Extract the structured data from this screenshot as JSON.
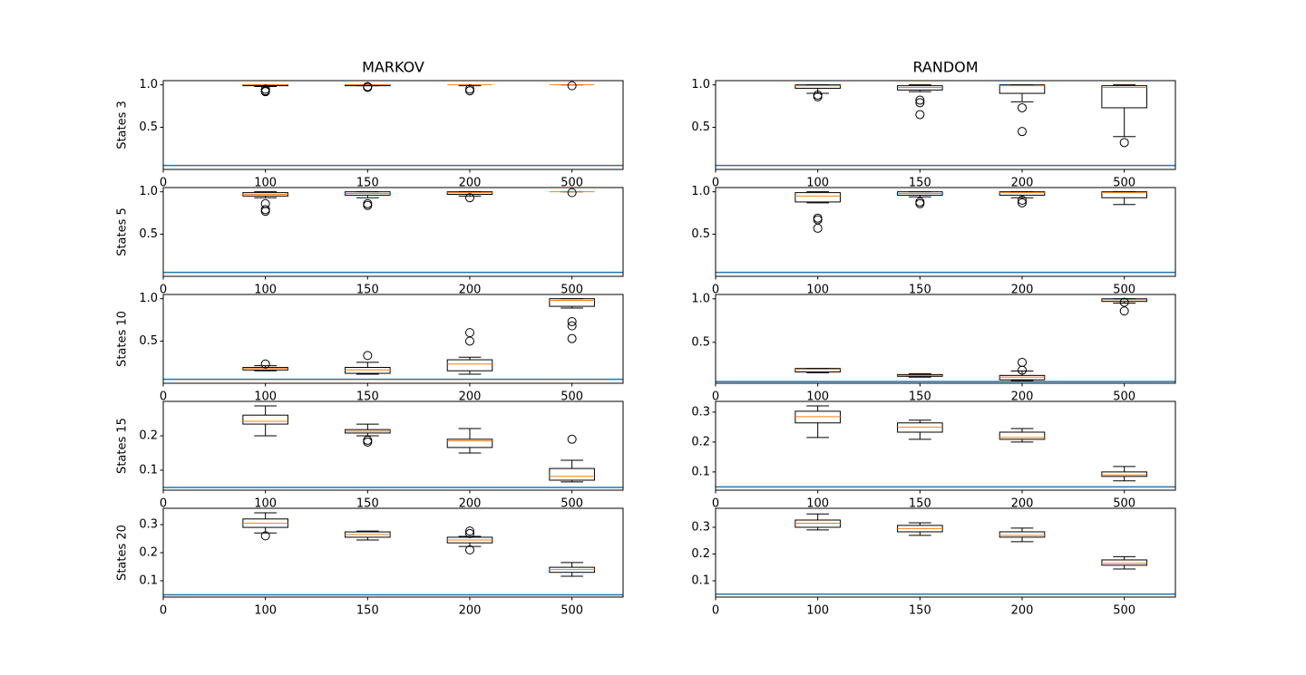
{
  "chart_data": [
    {
      "type": "box",
      "title": "MARKOV",
      "ylabel": "States 3",
      "x": [
        1,
        2,
        3,
        4
      ],
      "xlim": [
        0,
        4.5
      ],
      "xticks": [
        0,
        {
          "value": 1,
          "label": "100"
        },
        {
          "value": 2,
          "label": "150"
        },
        {
          "value": 3,
          "label": "200"
        },
        {
          "value": 4,
          "label": "500"
        }
      ],
      "ylim": [
        0.003,
        1.05
      ],
      "yticks": [
        0.5,
        {
          "value": 1,
          "label": "1.0"
        }
      ],
      "hline": {
        "value": 0.05,
        "color": "#1f77b4"
      },
      "box_color": "#000000",
      "median_color": "#ff7f0e",
      "boxes": [
        {
          "whislo": 0.98,
          "q1": 0.99,
          "med": 1.0,
          "q3": 1.0,
          "whishi": 1.0,
          "fliers": [
            0.95,
            0.93,
            0.92
          ]
        },
        {
          "whislo": 0.99,
          "q1": 0.99,
          "med": 1.0,
          "q3": 1.0,
          "whishi": 1.0,
          "fliers": [
            0.98,
            0.97
          ]
        },
        {
          "whislo": 0.99,
          "q1": 1.0,
          "med": 1.0,
          "q3": 1.0,
          "whishi": 1.0,
          "fliers": [
            0.95,
            0.93
          ]
        },
        {
          "whislo": 1.0,
          "q1": 1.0,
          "med": 1.0,
          "q3": 1.0,
          "whishi": 1.0,
          "fliers": [
            0.99
          ]
        }
      ]
    },
    {
      "type": "box",
      "title": "RANDOM",
      "x": [
        1,
        2,
        3,
        4
      ],
      "xlim": [
        0,
        4.5
      ],
      "xticks": [
        0,
        {
          "value": 1,
          "label": "100"
        },
        {
          "value": 2,
          "label": "150"
        },
        {
          "value": 3,
          "label": "200"
        },
        {
          "value": 4,
          "label": "500"
        }
      ],
      "ylim": [
        0.003,
        1.05
      ],
      "yticks": [
        0.5,
        {
          "value": 1,
          "label": "1.0"
        }
      ],
      "hline": {
        "value": 0.05,
        "color": "#1f77b4"
      },
      "box_color": "#000000",
      "median_color": "#ff7f0e",
      "boxes": [
        {
          "whislo": 0.9,
          "q1": 0.96,
          "med": 0.99,
          "q3": 1.0,
          "whishi": 1.0,
          "fliers": [
            0.88,
            0.86
          ]
        },
        {
          "whislo": 0.92,
          "q1": 0.94,
          "med": 0.97,
          "q3": 0.99,
          "whishi": 1.0,
          "fliers": [
            0.82,
            0.79,
            0.65
          ]
        },
        {
          "whislo": 0.8,
          "q1": 0.9,
          "med": 0.99,
          "q3": 1.0,
          "whishi": 1.0,
          "fliers": [
            0.73,
            0.45
          ]
        },
        {
          "whislo": 0.39,
          "q1": 0.73,
          "med": 0.97,
          "q3": 0.99,
          "whishi": 1.0,
          "fliers": [
            0.32
          ]
        }
      ]
    },
    {
      "type": "box",
      "ylabel": "States 5",
      "x": [
        1,
        2,
        3,
        4
      ],
      "xlim": [
        0,
        4.5
      ],
      "xticks": [
        0,
        {
          "value": 1,
          "label": "100"
        },
        {
          "value": 2,
          "label": "150"
        },
        {
          "value": 3,
          "label": "200"
        },
        {
          "value": 4,
          "label": "500"
        }
      ],
      "ylim": [
        0.003,
        1.05
      ],
      "yticks": [
        0.5,
        {
          "value": 1,
          "label": "1.0"
        }
      ],
      "hline": {
        "value": 0.05,
        "color": "#1f77b4"
      },
      "box_color": "#000000",
      "median_color": "#ff7f0e",
      "boxes": [
        {
          "whislo": 0.93,
          "q1": 0.95,
          "med": 0.97,
          "q3": 0.99,
          "whishi": 1.0,
          "fliers": [
            0.86,
            0.79,
            0.77
          ]
        },
        {
          "whislo": 0.93,
          "q1": 0.96,
          "med": 0.98,
          "q3": 1.0,
          "whishi": 1.0,
          "fliers": [
            0.86,
            0.84
          ]
        },
        {
          "whislo": 0.95,
          "q1": 0.97,
          "med": 0.99,
          "q3": 1.0,
          "whishi": 1.0,
          "fliers": [
            0.93
          ]
        },
        {
          "whislo": 1.0,
          "q1": 1.0,
          "med": 1.0,
          "q3": 1.0,
          "whishi": 1.0,
          "fliers": [
            0.99
          ]
        }
      ]
    },
    {
      "type": "box",
      "x": [
        1,
        2,
        3,
        4
      ],
      "xlim": [
        0,
        4.5
      ],
      "xticks": [
        0,
        {
          "value": 1,
          "label": "100"
        },
        {
          "value": 2,
          "label": "150"
        },
        {
          "value": 3,
          "label": "200"
        },
        {
          "value": 4,
          "label": "500"
        }
      ],
      "ylim": [
        0.003,
        1.05
      ],
      "yticks": [
        0.5,
        {
          "value": 1,
          "label": "1.0"
        }
      ],
      "hline": {
        "value": 0.05,
        "color": "#1f77b4"
      },
      "box_color": "#000000",
      "median_color": "#ff7f0e",
      "boxes": [
        {
          "whislo": 0.87,
          "q1": 0.88,
          "med": 0.95,
          "q3": 0.99,
          "whishi": 1.0,
          "fliers": [
            0.69,
            0.67,
            0.57
          ]
        },
        {
          "whislo": 0.94,
          "q1": 0.96,
          "med": 0.98,
          "q3": 1.0,
          "whishi": 1.0,
          "fliers": [
            0.88,
            0.86
          ]
        },
        {
          "whislo": 0.93,
          "q1": 0.96,
          "med": 0.99,
          "q3": 1.0,
          "whishi": 1.0,
          "fliers": [
            0.9,
            0.87
          ]
        },
        {
          "whislo": 0.85,
          "q1": 0.93,
          "med": 0.99,
          "q3": 1.0,
          "whishi": 1.0,
          "fliers": []
        }
      ]
    },
    {
      "type": "box",
      "ylabel": "States 10",
      "x": [
        1,
        2,
        3,
        4
      ],
      "xlim": [
        0,
        4.5
      ],
      "xticks": [
        0,
        {
          "value": 1,
          "label": "100"
        },
        {
          "value": 2,
          "label": "150"
        },
        {
          "value": 3,
          "label": "200"
        },
        {
          "value": 4,
          "label": "500"
        }
      ],
      "ylim": [
        0.003,
        1.05
      ],
      "yticks": [
        0.5,
        {
          "value": 1,
          "label": "1.0"
        }
      ],
      "hline": {
        "value": 0.05,
        "color": "#1f77b4"
      },
      "box_color": "#000000",
      "median_color": "#ff7f0e",
      "boxes": [
        {
          "whislo": 0.15,
          "q1": 0.16,
          "med": 0.18,
          "q3": 0.19,
          "whishi": 0.21,
          "fliers": [
            0.23
          ]
        },
        {
          "whislo": 0.11,
          "q1": 0.12,
          "med": 0.16,
          "q3": 0.19,
          "whishi": 0.25,
          "fliers": [
            0.33
          ]
        },
        {
          "whislo": 0.11,
          "q1": 0.15,
          "med": 0.23,
          "q3": 0.28,
          "whishi": 0.31,
          "fliers": [
            0.6,
            0.5
          ]
        },
        {
          "whislo": 0.89,
          "q1": 0.91,
          "med": 0.98,
          "q3": 1.0,
          "whishi": 1.0,
          "fliers": [
            0.73,
            0.68,
            0.53
          ]
        }
      ]
    },
    {
      "type": "box",
      "x": [
        1,
        2,
        3,
        4
      ],
      "xlim": [
        0,
        4.5
      ],
      "xticks": [
        0,
        {
          "value": 1,
          "label": "100"
        },
        {
          "value": 2,
          "label": "150"
        },
        {
          "value": 3,
          "label": "200"
        },
        {
          "value": 4,
          "label": "500"
        }
      ],
      "ylim": [
        0.03,
        1.05
      ],
      "yticks": [
        0.5,
        {
          "value": 1,
          "label": "1.0"
        }
      ],
      "hline": {
        "value": 0.05,
        "color": "#1f77b4"
      },
      "box_color": "#000000",
      "median_color": "#ff7f0e",
      "boxes": [
        {
          "whislo": 0.15,
          "q1": 0.16,
          "med": 0.19,
          "q3": 0.2,
          "whishi": 0.2,
          "fliers": []
        },
        {
          "whislo": 0.1,
          "q1": 0.11,
          "med": 0.12,
          "q3": 0.13,
          "whishi": 0.14,
          "fliers": []
        },
        {
          "whislo": 0.06,
          "q1": 0.07,
          "med": 0.1,
          "q3": 0.12,
          "whishi": 0.17,
          "fliers": [
            0.27,
            0.18
          ]
        },
        {
          "whislo": 0.95,
          "q1": 0.97,
          "med": 0.99,
          "q3": 1.0,
          "whishi": 1.0,
          "fliers": [
            0.96,
            0.86
          ]
        }
      ]
    },
    {
      "type": "box",
      "ylabel": "States 15",
      "x": [
        1,
        2,
        3,
        4
      ],
      "xlim": [
        0,
        4.5
      ],
      "xticks": [
        0,
        {
          "value": 1,
          "label": "100"
        },
        {
          "value": 2,
          "label": "150"
        },
        {
          "value": 3,
          "label": "200"
        },
        {
          "value": 4,
          "label": "500"
        }
      ],
      "ylim": [
        0.042,
        0.3
      ],
      "yticks": [
        0.1,
        0.2
      ],
      "hline": {
        "value": 0.05,
        "color": "#1f77b4"
      },
      "box_color": "#000000",
      "median_color": "#ff7f0e",
      "boxes": [
        {
          "whislo": 0.2,
          "q1": 0.234,
          "med": 0.242,
          "q3": 0.26,
          "whishi": 0.287,
          "fliers": []
        },
        {
          "whislo": 0.2,
          "q1": 0.208,
          "med": 0.213,
          "q3": 0.218,
          "whishi": 0.234,
          "fliers": [
            0.187,
            0.182
          ]
        },
        {
          "whislo": 0.15,
          "q1": 0.166,
          "med": 0.185,
          "q3": 0.19,
          "whishi": 0.221,
          "fliers": []
        },
        {
          "whislo": 0.066,
          "q1": 0.071,
          "med": 0.082,
          "q3": 0.105,
          "whishi": 0.129,
          "fliers": [
            0.19
          ]
        }
      ]
    },
    {
      "type": "box",
      "x": [
        1,
        2,
        3,
        4
      ],
      "xlim": [
        0,
        4.5
      ],
      "xticks": [
        0,
        {
          "value": 1,
          "label": "100"
        },
        {
          "value": 2,
          "label": "150"
        },
        {
          "value": 3,
          "label": "200"
        },
        {
          "value": 4,
          "label": "500"
        }
      ],
      "ylim": [
        0.039,
        0.336
      ],
      "yticks": [
        0.1,
        0.2,
        0.3
      ],
      "hline": {
        "value": 0.05,
        "color": "#1f77b4"
      },
      "box_color": "#000000",
      "median_color": "#ff7f0e",
      "boxes": [
        {
          "whislo": 0.215,
          "q1": 0.264,
          "med": 0.285,
          "q3": 0.303,
          "whishi": 0.321,
          "fliers": []
        },
        {
          "whislo": 0.209,
          "q1": 0.233,
          "med": 0.25,
          "q3": 0.264,
          "whishi": 0.273,
          "fliers": []
        },
        {
          "whislo": 0.2,
          "q1": 0.209,
          "med": 0.215,
          "q3": 0.233,
          "whishi": 0.245,
          "fliers": []
        },
        {
          "whislo": 0.07,
          "q1": 0.085,
          "med": 0.09,
          "q3": 0.1,
          "whishi": 0.118,
          "fliers": []
        }
      ]
    },
    {
      "type": "box",
      "ylabel": "States 20",
      "x": [
        1,
        2,
        3,
        4
      ],
      "xlim": [
        0,
        4.5
      ],
      "xticks": [
        0,
        {
          "value": 1,
          "label": "100"
        },
        {
          "value": 2,
          "label": "150"
        },
        {
          "value": 3,
          "label": "200"
        },
        {
          "value": 4,
          "label": "500"
        }
      ],
      "ylim": [
        0.042,
        0.358
      ],
      "yticks": [
        0.1,
        0.2,
        0.3
      ],
      "hline": {
        "value": 0.05,
        "color": "#1f77b4"
      },
      "box_color": "#000000",
      "median_color": "#ff7f0e",
      "boxes": [
        {
          "whislo": 0.27,
          "q1": 0.29,
          "med": 0.305,
          "q3": 0.32,
          "whishi": 0.342,
          "fliers": [
            0.26
          ]
        },
        {
          "whislo": 0.245,
          "q1": 0.255,
          "med": 0.265,
          "q3": 0.274,
          "whishi": 0.277,
          "fliers": []
        },
        {
          "whislo": 0.222,
          "q1": 0.235,
          "med": 0.245,
          "q3": 0.255,
          "whishi": 0.258,
          "fliers": [
            0.277,
            0.268,
            0.21
          ]
        },
        {
          "whislo": 0.116,
          "q1": 0.13,
          "med": 0.14,
          "q3": 0.148,
          "whishi": 0.165,
          "fliers": []
        }
      ]
    },
    {
      "type": "box",
      "x": [
        1,
        2,
        3,
        4
      ],
      "xlim": [
        0,
        4.5
      ],
      "xticks": [
        0,
        {
          "value": 1,
          "label": "100"
        },
        {
          "value": 2,
          "label": "150"
        },
        {
          "value": 3,
          "label": "200"
        },
        {
          "value": 4,
          "label": "500"
        }
      ],
      "ylim": [
        0.039,
        0.371
      ],
      "yticks": [
        0.1,
        0.2,
        0.3
      ],
      "hline": {
        "value": 0.05,
        "color": "#1f77b4"
      },
      "box_color": "#000000",
      "median_color": "#ff7f0e",
      "boxes": [
        {
          "whislo": 0.29,
          "q1": 0.3,
          "med": 0.315,
          "q3": 0.327,
          "whishi": 0.35,
          "fliers": []
        },
        {
          "whislo": 0.27,
          "q1": 0.283,
          "med": 0.295,
          "q3": 0.307,
          "whishi": 0.317,
          "fliers": []
        },
        {
          "whislo": 0.246,
          "q1": 0.263,
          "med": 0.27,
          "q3": 0.283,
          "whishi": 0.297,
          "fliers": []
        },
        {
          "whislo": 0.144,
          "q1": 0.158,
          "med": 0.165,
          "q3": 0.178,
          "whishi": 0.19,
          "fliers": []
        }
      ]
    }
  ]
}
